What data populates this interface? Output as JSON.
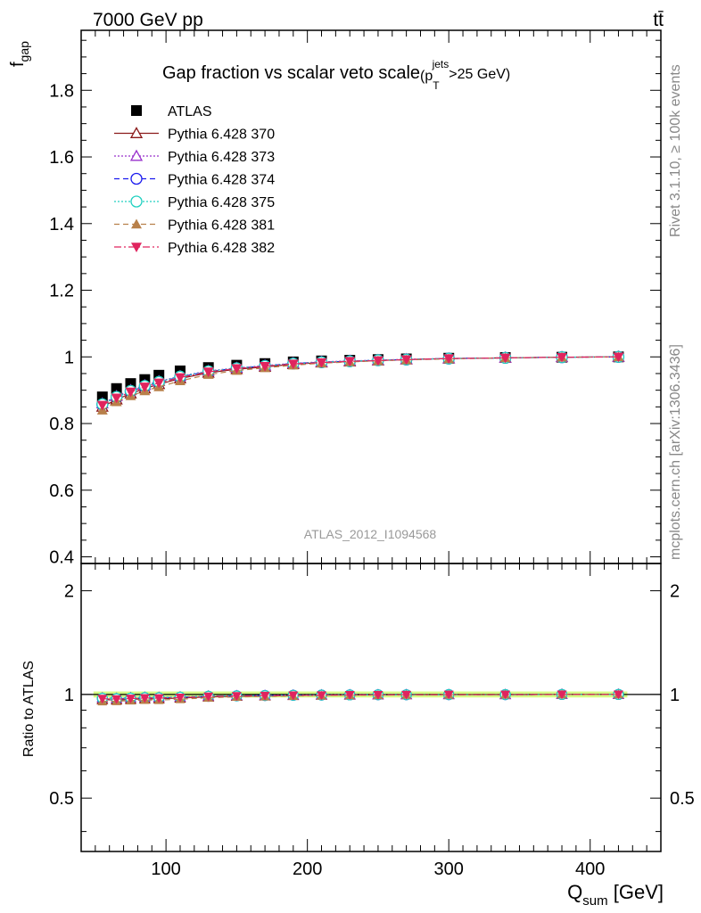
{
  "header": {
    "left": "7000 GeV pp",
    "right": "tt̄"
  },
  "side_labels": {
    "rivet": "Rivet 3.1.10, ≥ 100k events",
    "mcplots": "mcplots.cern.ch [arXiv:1306.3436]"
  },
  "watermark": "ATLAS_2012_I1094568",
  "chart_data": [
    {
      "type": "scatter",
      "panel": "main",
      "title": {
        "main": "Gap fraction vs scalar veto scale",
        "paren_open": "(p",
        "sub": "T",
        "sup": "jets",
        "tail": ">25 GeV)"
      },
      "ylabel": {
        "main": "f",
        "sub": "gap"
      },
      "xlim": [
        40,
        450
      ],
      "ylim": [
        0.38,
        1.98
      ],
      "y_ticks": [
        0.4,
        0.6,
        0.8,
        1.0,
        1.2,
        1.4,
        1.6,
        1.8
      ],
      "y_tick_labels": [
        "0.4",
        "0.6",
        "0.8",
        "1",
        "1.2",
        "1.4",
        "1.6",
        "1.8"
      ],
      "legend_position": "top-left",
      "x": [
        55,
        65,
        75,
        85,
        95,
        110,
        130,
        150,
        170,
        190,
        210,
        230,
        250,
        270,
        300,
        340,
        380,
        420
      ],
      "series": [
        {
          "name": "ATLAS",
          "color": "#000000",
          "marker": "square-filled",
          "line": "none",
          "values": [
            0.88,
            0.905,
            0.92,
            0.932,
            0.945,
            0.958,
            0.968,
            0.975,
            0.98,
            0.985,
            0.988,
            0.99,
            0.992,
            0.994,
            0.996,
            0.998,
            0.999,
            1.0
          ]
        },
        {
          "name": "Pythia 6.428 370",
          "color": "#8b1a1a",
          "marker": "triangle-up-open",
          "line": "solid",
          "values": [
            0.85,
            0.872,
            0.89,
            0.905,
            0.918,
            0.935,
            0.952,
            0.963,
            0.97,
            0.978,
            0.983,
            0.986,
            0.989,
            0.992,
            0.995,
            0.997,
            0.999,
            1.0
          ]
        },
        {
          "name": "Pythia 6.428 373",
          "color": "#9932cc",
          "marker": "triangle-up-open",
          "line": "dotted",
          "values": [
            0.86,
            0.882,
            0.9,
            0.915,
            0.927,
            0.942,
            0.958,
            0.967,
            0.974,
            0.981,
            0.985,
            0.988,
            0.99,
            0.993,
            0.995,
            0.997,
            0.999,
            1.0
          ]
        },
        {
          "name": "Pythia 6.428 374",
          "color": "#1a1aee",
          "marker": "circle-open",
          "line": "dashed",
          "values": [
            0.857,
            0.879,
            0.897,
            0.911,
            0.924,
            0.94,
            0.956,
            0.966,
            0.973,
            0.98,
            0.984,
            0.987,
            0.99,
            0.992,
            0.995,
            0.997,
            0.999,
            1.0
          ]
        },
        {
          "name": "Pythia 6.428 375",
          "color": "#20d0c0",
          "marker": "circle-open",
          "line": "dotted",
          "values": [
            0.858,
            0.88,
            0.898,
            0.913,
            0.925,
            0.941,
            0.957,
            0.966,
            0.973,
            0.98,
            0.984,
            0.987,
            0.99,
            0.992,
            0.995,
            0.997,
            0.999,
            1.0
          ]
        },
        {
          "name": "Pythia 6.428 381",
          "color": "#b8804a",
          "marker": "triangle-up-filled",
          "line": "dashed",
          "values": [
            0.84,
            0.865,
            0.883,
            0.898,
            0.91,
            0.928,
            0.947,
            0.959,
            0.967,
            0.975,
            0.981,
            0.985,
            0.988,
            0.991,
            0.994,
            0.997,
            0.999,
            1.0
          ]
        },
        {
          "name": "Pythia 6.428 382",
          "color": "#e0245e",
          "marker": "triangle-down-filled",
          "line": "dashdot",
          "values": [
            0.855,
            0.877,
            0.895,
            0.91,
            0.922,
            0.938,
            0.955,
            0.965,
            0.972,
            0.979,
            0.983,
            0.987,
            0.989,
            0.992,
            0.995,
            0.997,
            0.999,
            1.0
          ]
        }
      ]
    },
    {
      "type": "scatter",
      "panel": "ratio",
      "ylabel": "Ratio to ATLAS",
      "xlabel": {
        "main": "Q",
        "sub": "sum",
        "unit": " [GeV]"
      },
      "xlim": [
        40,
        450
      ],
      "ylim": [
        0.35,
        2.4
      ],
      "y_scale": "log",
      "y_ticks": [
        0.5,
        1,
        2
      ],
      "y_tick_labels": [
        "0.5",
        "1",
        "2"
      ],
      "x_ticks": [
        100,
        200,
        300,
        400
      ],
      "x_tick_labels": [
        "100",
        "200",
        "300",
        "400"
      ],
      "reference_band": {
        "color": "#ccff66",
        "halfwidth": 0.02
      }
    }
  ]
}
